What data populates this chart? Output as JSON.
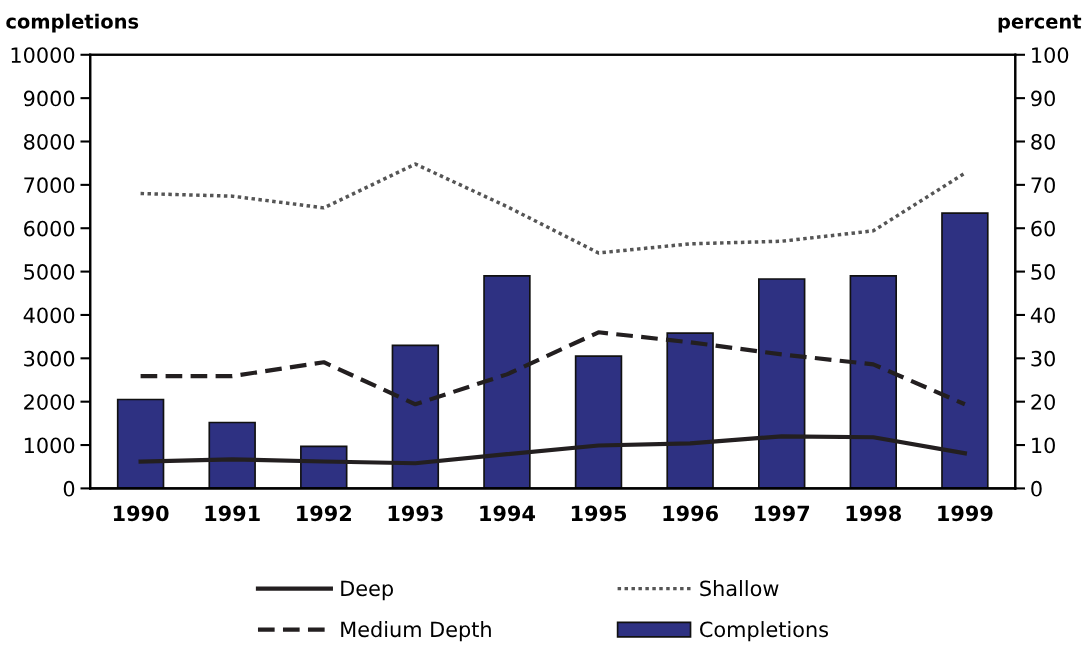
{
  "chart_data": {
    "type": "bar",
    "ylabel": "completions",
    "y2label": "percent",
    "categories": [
      "1990",
      "1991",
      "1992",
      "1993",
      "1994",
      "1995",
      "1996",
      "1997",
      "1998",
      "1999"
    ],
    "series": [
      {
        "name": "Deep",
        "type": "line",
        "axis": "y2",
        "line_style": "solid",
        "color": "#231f20",
        "values": [
          6.2,
          6.7,
          6.2,
          5.8,
          7.9,
          9.9,
          10.4,
          12.0,
          11.8,
          8.1
        ]
      },
      {
        "name": "Medium Depth",
        "type": "line",
        "axis": "y2",
        "line_style": "dashed",
        "color": "#231f20",
        "values": [
          25.9,
          25.9,
          29.1,
          19.4,
          26.3,
          36.0,
          33.7,
          30.9,
          28.6,
          19.4
        ]
      },
      {
        "name": "Shallow",
        "type": "line",
        "axis": "y2",
        "line_style": "dotted",
        "color": "#555555",
        "values": [
          68.0,
          67.4,
          64.7,
          74.8,
          65.0,
          54.3,
          56.4,
          57.0,
          59.4,
          72.7
        ]
      },
      {
        "name": "Completions",
        "color": "#2e3182",
        "values": [
          2050,
          1520,
          970,
          3300,
          4900,
          3050,
          3580,
          4830,
          4900,
          6350
        ]
      }
    ],
    "ylim": [
      0,
      10000
    ],
    "yticks": [
      0,
      1000,
      2000,
      3000,
      4000,
      5000,
      6000,
      7000,
      8000,
      9000,
      10000
    ],
    "y2lim": [
      0,
      100
    ],
    "y2ticks": [
      0,
      10,
      20,
      30,
      40,
      50,
      60,
      70,
      80,
      90,
      100
    ],
    "grid": false,
    "legend": "bottom"
  }
}
